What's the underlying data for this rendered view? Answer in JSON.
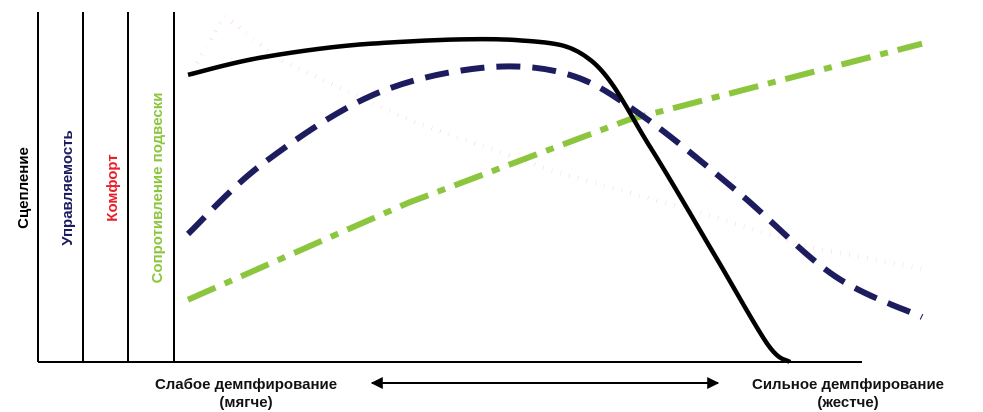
{
  "chart_data": {
    "type": "line",
    "x_axis": {
      "left_label": "Слабое демпфирование",
      "left_sublabel": "(мягче)",
      "right_label": "Сильное демпфирование",
      "right_sublabel": "(жестче)",
      "xlim": [
        0,
        100
      ],
      "ylim": [
        0,
        100
      ]
    },
    "y_axes": [
      {
        "label": "Сцепление",
        "color": "#000000"
      },
      {
        "label": "Управляемость",
        "color": "#1c1c5e"
      },
      {
        "label": "Комфорт",
        "color": "#e8202a"
      },
      {
        "label": "Сопротивление подвески",
        "color": "#8cc63f"
      }
    ],
    "series": [
      {
        "key": "grip",
        "color": "#000000",
        "style": "solid",
        "points": [
          [
            0,
            83
          ],
          [
            10,
            88
          ],
          [
            25,
            92
          ],
          [
            45,
            93
          ],
          [
            55,
            87
          ],
          [
            63,
            62
          ],
          [
            72,
            30
          ],
          [
            79,
            5
          ],
          [
            82,
            0
          ]
        ]
      },
      {
        "key": "handling",
        "color": "#1c1c5e",
        "style": "dashed",
        "points": [
          [
            0,
            37
          ],
          [
            10,
            57
          ],
          [
            25,
            77
          ],
          [
            40,
            85
          ],
          [
            52,
            83
          ],
          [
            62,
            71
          ],
          [
            75,
            49
          ],
          [
            88,
            25
          ],
          [
            100,
            13
          ]
        ]
      },
      {
        "key": "comfort",
        "color": "#e8202a",
        "style": "dotted",
        "points": [
          [
            0,
            82
          ],
          [
            5,
            100
          ],
          [
            12,
            88
          ],
          [
            30,
            70
          ],
          [
            50,
            55
          ],
          [
            70,
            43
          ],
          [
            85,
            33
          ],
          [
            100,
            27
          ]
        ]
      },
      {
        "key": "suspension",
        "color": "#8cc63f",
        "style": "dashdot",
        "points": [
          [
            0,
            18
          ],
          [
            30,
            46
          ],
          [
            60,
            70
          ],
          [
            100,
            92
          ]
        ]
      }
    ]
  }
}
